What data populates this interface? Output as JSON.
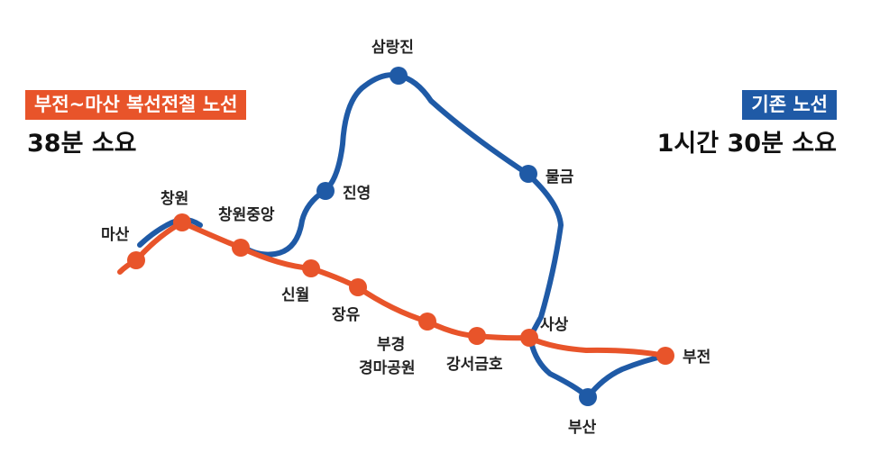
{
  "colors": {
    "new_line": "#e8542a",
    "old_line": "#1f5aa6",
    "text": "#222222"
  },
  "legend": {
    "new_route": {
      "label": "부전~마산 복선전철 노선",
      "duration": "38분 소요"
    },
    "old_route": {
      "label": "기존 노선",
      "duration": "1시간 30분 소요"
    }
  },
  "stations": {
    "masan": "마산",
    "changwon": "창원",
    "changwon_jungang": "창원중앙",
    "sinwol": "신월",
    "jangyu": "장유",
    "bugyeong_1": "부경",
    "bugyeong_2": "경마공원",
    "gangseo": "강서금호",
    "sasang": "사상",
    "bujeon": "부전",
    "busan": "부산",
    "jinyeong": "진영",
    "samnangjin": "삼랑진",
    "mulgeum": "물금"
  }
}
